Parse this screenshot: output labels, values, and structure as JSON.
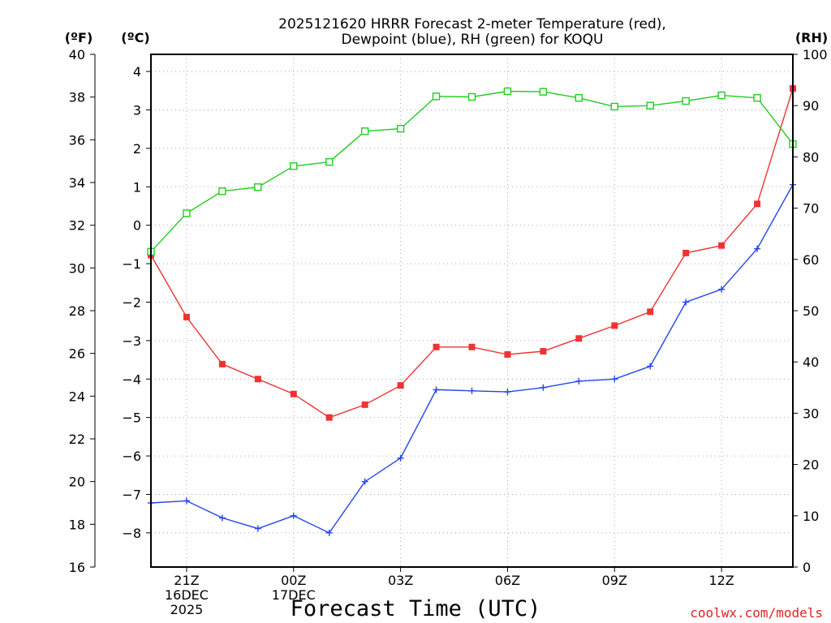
{
  "chart_data": {
    "type": "line",
    "title_line1": "2025121620 HRRR Forecast 2-meter Temperature (red),",
    "title_line2": "Dewpoint (blue), RH (green) for KOQU",
    "xlabel": "Forecast Time (UTC)",
    "credit": "coolwx.com/models",
    "credit_color": "#dd2222",
    "axes": {
      "fahrenheit": {
        "unit": "(ºF)",
        "ticks": [
          16,
          18,
          20,
          22,
          24,
          26,
          28,
          30,
          32,
          34,
          36,
          38,
          40
        ],
        "range": [
          16,
          40
        ]
      },
      "celsius": {
        "unit": "(ºC)",
        "ticks": [
          -8,
          -7,
          -6,
          -5,
          -4,
          -3,
          -2,
          -1,
          0,
          1,
          2,
          3,
          4
        ],
        "range": [
          -8.8889,
          4.4444
        ]
      },
      "rh": {
        "unit": "(RH)",
        "ticks": [
          0,
          10,
          20,
          30,
          40,
          50,
          60,
          70,
          80,
          90,
          100
        ],
        "range": [
          0,
          100
        ]
      }
    },
    "x_range": [
      20,
      38
    ],
    "x_ticks": [
      {
        "hour": 21,
        "lines": [
          "21Z",
          "16DEC",
          "2025"
        ]
      },
      {
        "hour": 24,
        "lines": [
          "00Z",
          "17DEC"
        ]
      },
      {
        "hour": 27,
        "lines": [
          "03Z"
        ]
      },
      {
        "hour": 30,
        "lines": [
          "06Z"
        ]
      },
      {
        "hour": 33,
        "lines": [
          "09Z"
        ]
      },
      {
        "hour": 36,
        "lines": [
          "12Z"
        ]
      }
    ],
    "x": [
      20,
      21,
      22,
      23,
      24,
      25,
      26,
      27,
      28,
      29,
      30,
      31,
      32,
      33,
      34,
      35,
      36,
      37,
      38
    ],
    "series": [
      {
        "name": "Temperature",
        "unit": "F",
        "axis": "fahrenheit",
        "color": "#ee3333",
        "marker": "filled-square",
        "values": [
          30.6,
          27.7,
          25.5,
          24.8,
          24.1,
          23.0,
          23.6,
          24.5,
          26.3,
          26.3,
          25.95,
          26.1,
          26.7,
          27.3,
          27.95,
          30.7,
          31.05,
          33.0,
          38.4
        ]
      },
      {
        "name": "Dewpoint",
        "unit": "F",
        "axis": "fahrenheit",
        "color": "#2244ee",
        "marker": "plus",
        "values": [
          19.0,
          19.1,
          18.3,
          17.8,
          18.4,
          17.6,
          20.0,
          21.1,
          24.3,
          24.25,
          24.2,
          24.4,
          24.7,
          24.8,
          25.4,
          28.4,
          29.0,
          30.9,
          33.9
        ]
      },
      {
        "name": "RH",
        "unit": "%",
        "axis": "rh",
        "color": "#22cc22",
        "marker": "open-square",
        "values": [
          61.5,
          69.0,
          73.3,
          74.1,
          78.2,
          79.0,
          85.0,
          85.5,
          91.8,
          91.7,
          92.8,
          92.7,
          91.5,
          89.8,
          90.0,
          90.9,
          92.0,
          91.5,
          82.5
        ]
      }
    ],
    "grid": true
  }
}
